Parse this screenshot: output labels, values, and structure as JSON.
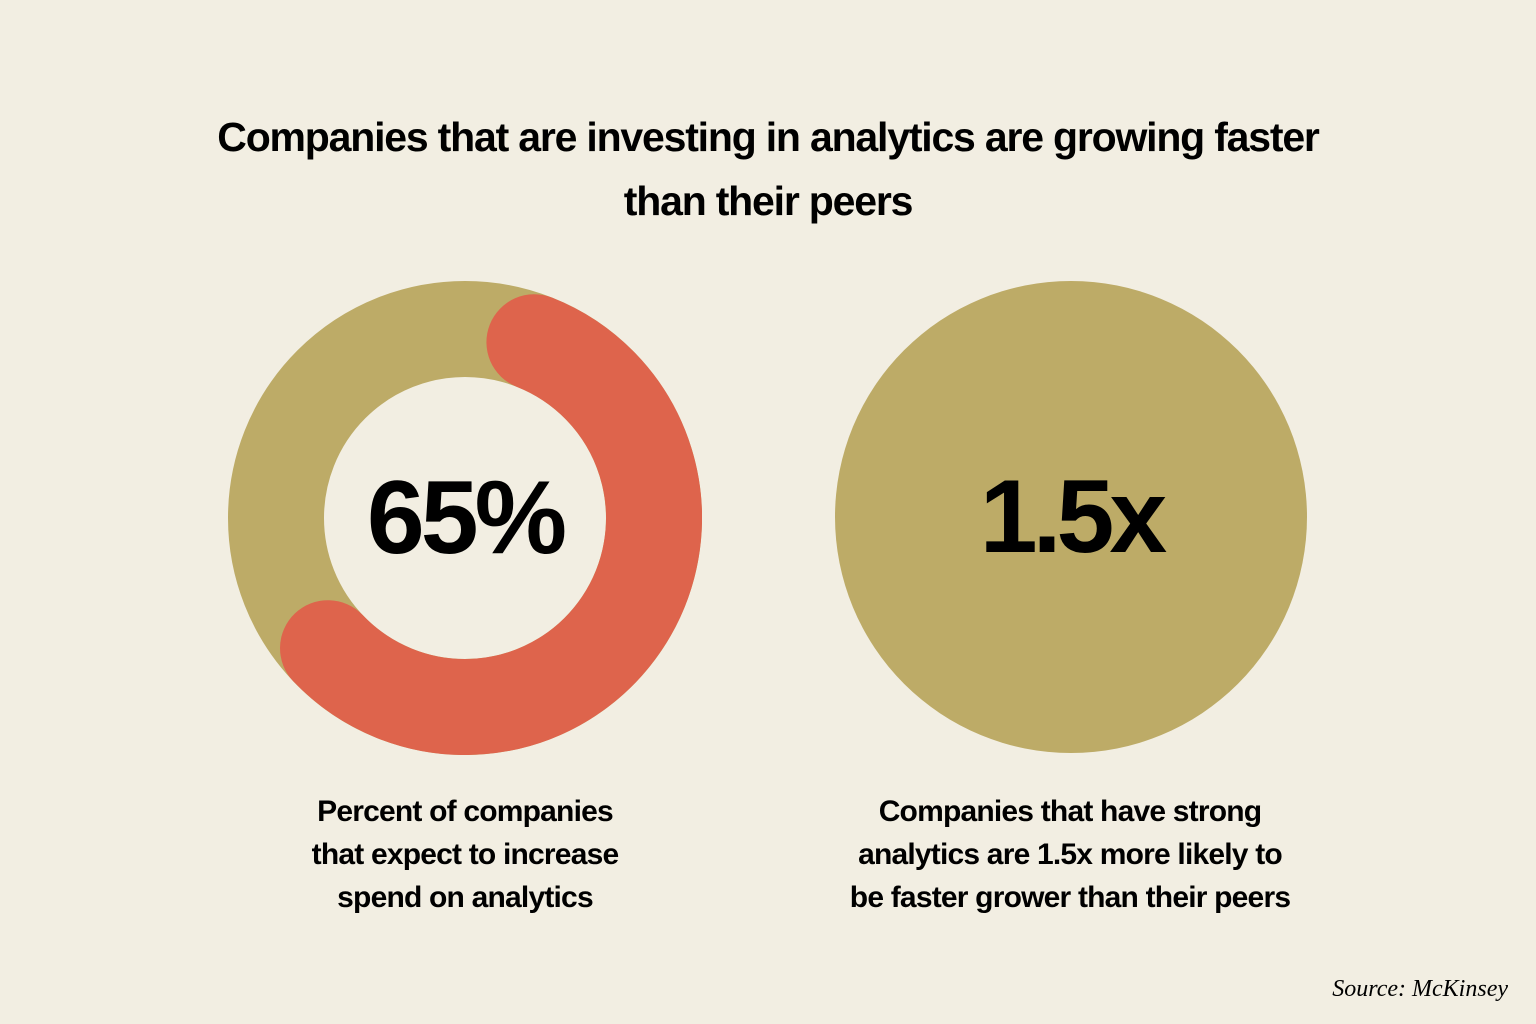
{
  "title_lines": [
    "Companies that are investing in analytics are growing faster",
    "than their peers"
  ],
  "colors": {
    "background": "#f2eee2",
    "olive": "#bdab67",
    "coral": "#de644c",
    "text": "#000000"
  },
  "chart_data": [
    {
      "type": "pie",
      "style": "donut",
      "value": 65,
      "value_label": "65%",
      "caption_lines": [
        "Percent of companies",
        "that expect to increase",
        "spend on analytics"
      ]
    },
    {
      "type": "table",
      "style": "circle",
      "value_label": "1.5x",
      "caption_lines": [
        "Companies that have strong",
        "analytics are 1.5x more likely to",
        "be faster grower than their peers"
      ]
    }
  ],
  "source": "Source: McKinsey"
}
